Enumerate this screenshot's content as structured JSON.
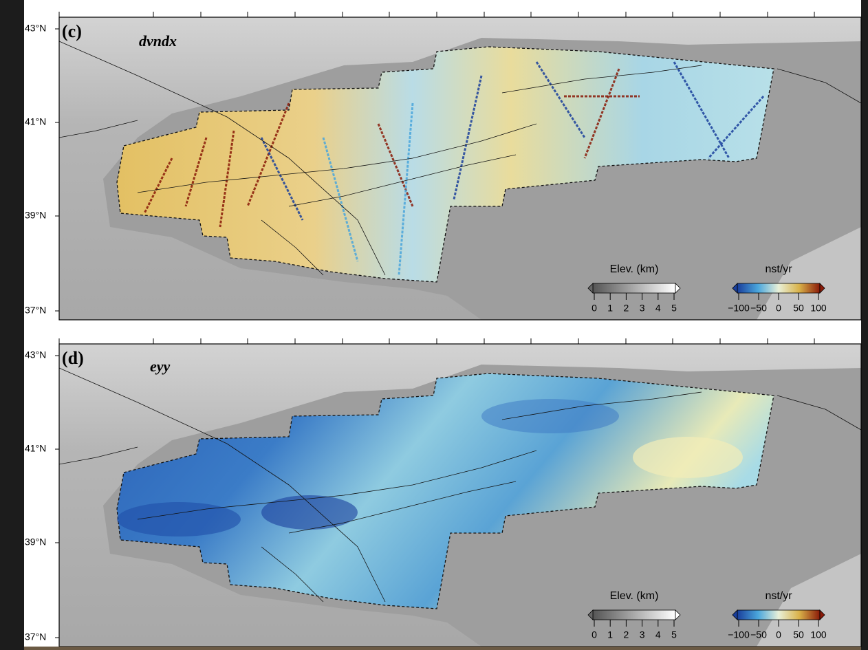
{
  "panels": [
    {
      "label": "(c)",
      "variable": "dvndx",
      "lat_labels": [
        "43°N",
        "41°N",
        "39°N",
        "37°N"
      ],
      "colorbars": [
        {
          "title": "Elev. (km)",
          "ticks": [
            "0",
            "1",
            "2",
            "3",
            "4",
            "5"
          ]
        },
        {
          "title": "nst/yr",
          "ticks": [
            "−100",
            "−50",
            "0",
            "50",
            "100"
          ]
        }
      ]
    },
    {
      "label": "(d)",
      "variable": "eyy",
      "lat_labels": [
        "43°N",
        "41°N",
        "39°N",
        "37°N"
      ],
      "colorbars": [
        {
          "title": "Elev. (km)",
          "ticks": [
            "0",
            "1",
            "2",
            "3",
            "4",
            "5"
          ]
        },
        {
          "title": "nst/yr",
          "ticks": [
            "−100",
            "−50",
            "0",
            "50",
            "100"
          ]
        }
      ]
    }
  ]
}
